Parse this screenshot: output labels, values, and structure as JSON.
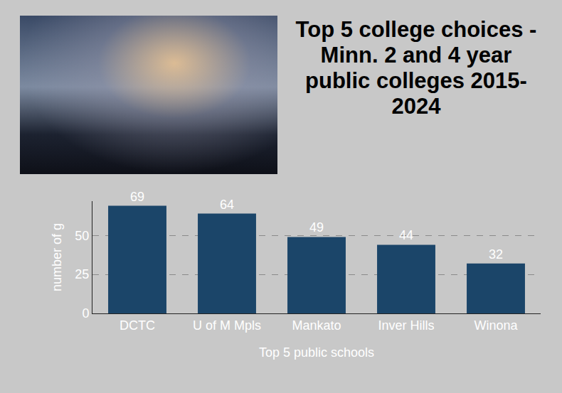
{
  "chart_data": {
    "type": "bar",
    "title": "Top 5 college choices - Minn. 2 and 4 year public colleges 2015-2024",
    "x_label": "Top 5 public schools",
    "y_label": "number of g",
    "categories": [
      "DCTC",
      "U of M Mpls",
      "Mankato",
      "Inver Hills",
      "Winona"
    ],
    "values": [
      69,
      64,
      49,
      44,
      32
    ],
    "color": "#1b4569",
    "ylim": [
      0,
      72
    ],
    "yticks": [
      0,
      25,
      50
    ],
    "grid": true,
    "data_labels": true
  }
}
